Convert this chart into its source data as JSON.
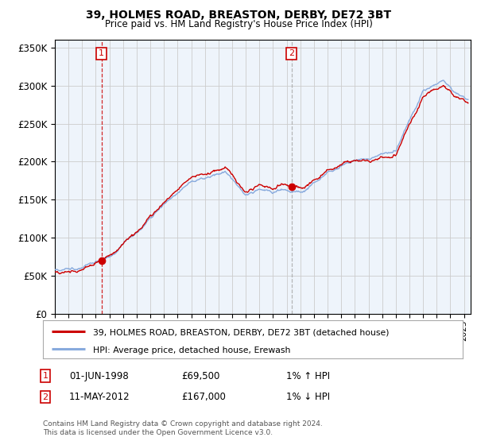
{
  "title": "39, HOLMES ROAD, BREASTON, DERBY, DE72 3BT",
  "subtitle": "Price paid vs. HM Land Registry's House Price Index (HPI)",
  "legend_line1": "39, HOLMES ROAD, BREASTON, DERBY, DE72 3BT (detached house)",
  "legend_line2": "HPI: Average price, detached house, Erewash",
  "annotation1_date": "01-JUN-1998",
  "annotation1_price": "£69,500",
  "annotation1_hpi": "1% ↑ HPI",
  "annotation2_date": "11-MAY-2012",
  "annotation2_price": "£167,000",
  "annotation2_hpi": "1% ↓ HPI",
  "footnote": "Contains HM Land Registry data © Crown copyright and database right 2024.\nThis data is licensed under the Open Government Licence v3.0.",
  "sale1_year": 1998.42,
  "sale1_price": 69500,
  "sale2_year": 2012.36,
  "sale2_price": 167000,
  "hpi_line_color": "#88aadd",
  "price_line_color": "#cc0000",
  "sale_dot_color": "#cc0000",
  "background_color": "#ffffff",
  "chart_bg_color": "#eef4fb",
  "grid_color": "#cccccc",
  "ylim": [
    0,
    360000
  ],
  "xlim_start": 1995,
  "xlim_end": 2025.5
}
